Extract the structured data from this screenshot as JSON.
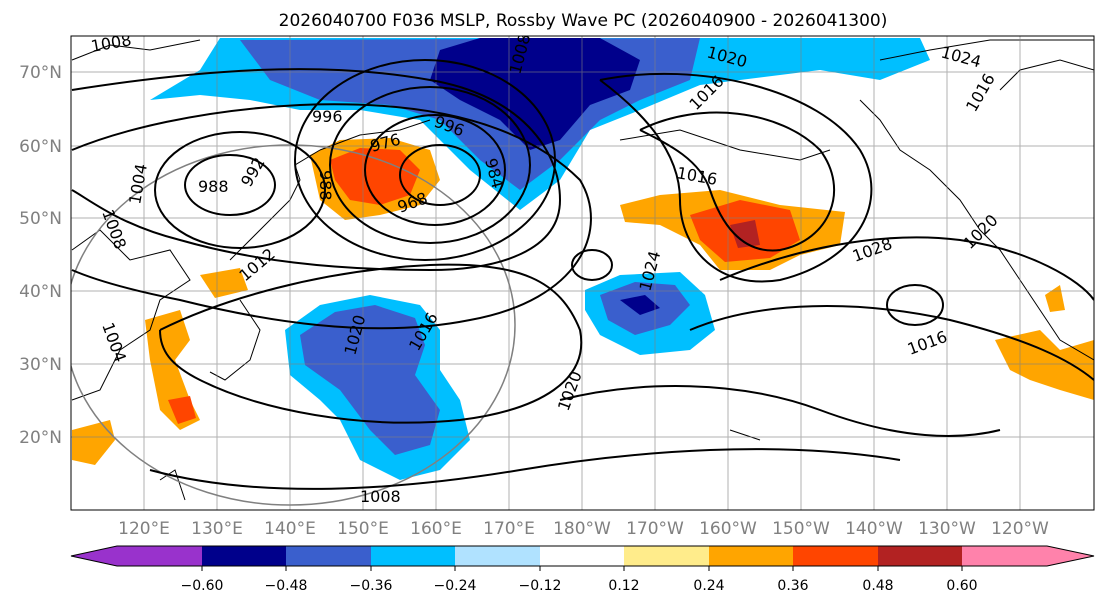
{
  "title": "2026040700 F036 MSLP, Rossby Wave PC (2026040900 - 2026041300)",
  "map": {
    "lat_labels": [
      "70°N",
      "60°N",
      "50°N",
      "40°N",
      "30°N",
      "20°N"
    ],
    "lon_labels": [
      "120°E",
      "130°E",
      "140°E",
      "150°E",
      "160°E",
      "170°E",
      "180°W",
      "170°W",
      "160°W",
      "150°W",
      "140°W",
      "130°W",
      "120°W"
    ],
    "contour_labels": [
      "1008",
      "1020",
      "1024",
      "1016",
      "1016",
      "996",
      "976",
      "988",
      "992",
      "988",
      "1004",
      "1008",
      "968",
      "996",
      "984",
      "1016",
      "1028",
      "1020",
      "1024",
      "1008",
      "1012",
      "1004",
      "1020",
      "1016",
      "1020",
      "1016",
      "1008"
    ]
  },
  "colorbar": {
    "ticks": [
      "−0.60",
      "−0.48",
      "−0.36",
      "−0.24",
      "−0.12",
      "0.12",
      "0.24",
      "0.36",
      "0.48",
      "0.60"
    ],
    "colors": [
      "#9932cc",
      "#00008b",
      "#3a5fcd",
      "#00bfff",
      "#b0e2ff",
      "#ffffff",
      "#ffec8b",
      "#ffa500",
      "#ff4500",
      "#b22222",
      "#ff82ab"
    ]
  }
}
